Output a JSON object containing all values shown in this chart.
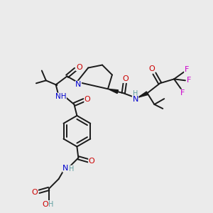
{
  "bg_color": "#ebebeb",
  "atom_colors": {
    "C": "#000000",
    "N": "#0000cd",
    "O": "#cc0000",
    "F": "#cc00cc",
    "H": "#5f9ea0"
  },
  "bond_color": "#1a1a1a",
  "bond_width": 1.4,
  "figsize": [
    3.0,
    3.0
  ],
  "dpi": 100
}
